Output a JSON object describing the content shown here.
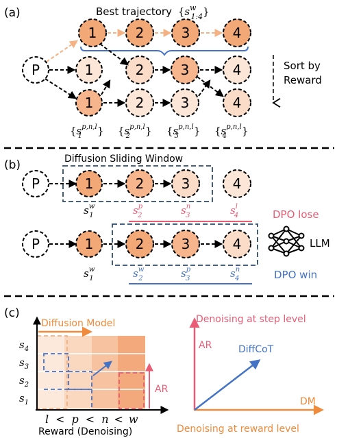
{
  "panel_a": {
    "label": "(a)",
    "best_trajectory": {
      "text": "Best trajectory",
      "set_open": "{",
      "symbol": "s",
      "sup": "w",
      "sub": "1:4",
      "set_close": "}"
    },
    "prompt_node": "P",
    "node_labels": [
      "1",
      "2",
      "3",
      "4"
    ],
    "sort_label_line1": "Sort by",
    "sort_label_line2": "Reward",
    "set_labels": [
      {
        "open": "{",
        "symbol": "s",
        "sub": "1",
        "sup": "p,n,l",
        "close": "}"
      },
      {
        "open": "{",
        "symbol": "s",
        "sub": "2",
        "sup": "p,n,l",
        "close": "}"
      },
      {
        "open": "{",
        "symbol": "s",
        "sub": "3",
        "sup": "p,n,l",
        "close": "}"
      },
      {
        "open": "{",
        "symbol": "s",
        "sub": "4",
        "sup": "p,n,l",
        "close": "}"
      }
    ]
  },
  "panel_b": {
    "label": "(b)",
    "window_title": "Diffusion Sliding Window",
    "prompt_node": "P",
    "node_labels": [
      "1",
      "2",
      "3",
      "4"
    ],
    "row1_states": [
      {
        "symbol": "s",
        "sub": "1",
        "sup": "w"
      },
      {
        "symbol": "s",
        "sub": "2",
        "sup": "p"
      },
      {
        "symbol": "s",
        "sub": "3",
        "sup": "n"
      },
      {
        "symbol": "s",
        "sub": "4",
        "sup": "l"
      }
    ],
    "row2_states": [
      {
        "symbol": "s",
        "sub": "1",
        "sup": "w"
      },
      {
        "symbol": "s",
        "sub": "2",
        "sup": "w"
      },
      {
        "symbol": "s",
        "sub": "3",
        "sup": "p"
      },
      {
        "symbol": "s",
        "sub": "4",
        "sup": "n"
      }
    ],
    "dpo_lose": "DPO lose",
    "dpo_win": "DPO win",
    "llm": "LLM"
  },
  "panel_c": {
    "label": "(c)",
    "diffusion_model": "Diffusion Model",
    "y_ticks": [
      {
        "symbol": "s",
        "sub": "4"
      },
      {
        "symbol": "s",
        "sub": "3"
      },
      {
        "symbol": "s",
        "sub": "2"
      },
      {
        "symbol": "s",
        "sub": "1"
      }
    ],
    "x_order": {
      "l": "l",
      "lt1": "<",
      "p": "p",
      "lt2": "<",
      "n": "n",
      "lt3": "<",
      "w": "w"
    },
    "x_title": "Reward (Denoising)",
    "ar": "AR",
    "right_title": "Denoising at step level",
    "right_y_label": "AR",
    "right_vector": "DiffCoT",
    "right_x_label": "DM",
    "right_bottom": "Denoising at reward level"
  },
  "colors": {
    "node_dark": "#F3A878",
    "node_mid": "#F8C9A8",
    "node_light": "#FBDCC8",
    "node_lighter": "#FCE6D8",
    "blue": "#4472C4",
    "red": "#E85D75",
    "orange": "#F08A3C",
    "dark_blue_dash": "#2E4A6E"
  }
}
